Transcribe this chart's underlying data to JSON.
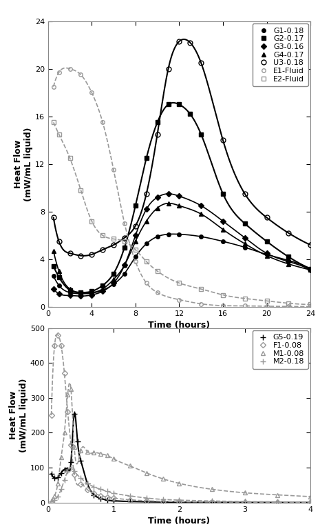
{
  "top": {
    "xlabel": "Time (hours)",
    "ylabel": "Heat Flow\n(mW/mL liquid)",
    "xlim": [
      0,
      24
    ],
    "ylim": [
      0,
      24
    ],
    "xticks": [
      0,
      4,
      8,
      12,
      16,
      20,
      24
    ],
    "yticks": [
      0,
      4,
      8,
      12,
      16,
      20,
      24
    ],
    "series": {
      "G1-0.18": {
        "x": [
          0.5,
          1,
          2,
          3,
          4,
          5,
          6,
          7,
          8,
          9,
          10,
          11,
          12,
          14,
          16,
          18,
          20,
          22,
          24
        ],
        "y": [
          2.6,
          1.8,
          1.2,
          1.1,
          1.15,
          1.4,
          1.9,
          2.8,
          4.2,
          5.3,
          5.9,
          6.1,
          6.1,
          5.9,
          5.5,
          5.0,
          4.4,
          3.9,
          3.2
        ],
        "marker": "o",
        "color": "#000000",
        "linestyle": "-",
        "markersize": 4,
        "fillstyle": "full",
        "lw": 1.2
      },
      "G2-0.17": {
        "x": [
          0.5,
          1,
          2,
          3,
          4,
          5,
          6,
          7,
          8,
          9,
          10,
          11,
          12,
          13,
          14,
          16,
          18,
          20,
          22,
          24
        ],
        "y": [
          3.4,
          2.5,
          1.4,
          1.2,
          1.3,
          1.8,
          2.8,
          5.0,
          8.5,
          12.5,
          15.5,
          17.0,
          17.0,
          16.2,
          14.5,
          9.5,
          7.0,
          5.5,
          4.2,
          3.2
        ],
        "marker": "s",
        "color": "#000000",
        "linestyle": "-",
        "markersize": 4,
        "fillstyle": "full",
        "lw": 1.5
      },
      "G3-0.16": {
        "x": [
          0.5,
          1,
          2,
          3,
          4,
          5,
          6,
          7,
          8,
          9,
          10,
          11,
          12,
          14,
          16,
          18,
          20,
          22,
          24
        ],
        "y": [
          1.5,
          1.1,
          0.95,
          0.9,
          1.0,
          1.3,
          2.0,
          3.5,
          6.0,
          8.2,
          9.2,
          9.5,
          9.3,
          8.5,
          7.2,
          5.8,
          4.5,
          3.8,
          3.1
        ],
        "marker": "D",
        "color": "#000000",
        "linestyle": "-",
        "markersize": 4,
        "fillstyle": "full",
        "lw": 1.2
      },
      "G4-0.17": {
        "x": [
          0.5,
          1,
          2,
          3,
          4,
          5,
          6,
          7,
          8,
          9,
          10,
          11,
          12,
          14,
          16,
          18,
          20,
          22,
          24
        ],
        "y": [
          4.7,
          3.0,
          1.5,
          1.2,
          1.2,
          1.5,
          2.3,
          3.5,
          5.5,
          7.2,
          8.3,
          8.7,
          8.5,
          7.8,
          6.5,
          5.3,
          4.3,
          3.6,
          3.1
        ],
        "marker": "^",
        "color": "#000000",
        "linestyle": "-",
        "markersize": 5,
        "fillstyle": "full",
        "lw": 1.2
      },
      "U3-0.18": {
        "x": [
          0.5,
          1,
          2,
          3,
          4,
          5,
          6,
          7,
          8,
          9,
          10,
          11,
          12,
          13,
          14,
          16,
          18,
          20,
          22,
          24
        ],
        "y": [
          7.5,
          5.5,
          4.5,
          4.3,
          4.4,
          4.8,
          5.2,
          5.8,
          6.8,
          9.5,
          14.5,
          20.0,
          22.3,
          22.2,
          20.5,
          14.0,
          9.5,
          7.5,
          6.2,
          5.2
        ],
        "marker": "o",
        "color": "#000000",
        "linestyle": "-",
        "markersize": 5,
        "fillstyle": "none",
        "lw": 1.5
      },
      "E1-Fluid": {
        "x": [
          0.5,
          1,
          2,
          3,
          4,
          5,
          6,
          7,
          8,
          9,
          10,
          12,
          14,
          16,
          18,
          20,
          22,
          24
        ],
        "y": [
          18.5,
          19.7,
          20.0,
          19.5,
          18.0,
          15.5,
          11.5,
          7.0,
          3.8,
          2.0,
          1.2,
          0.6,
          0.25,
          0.1,
          0.08,
          0.05,
          0.03,
          0.02
        ],
        "marker": "o",
        "color": "#999999",
        "linestyle": "--",
        "markersize": 4,
        "fillstyle": "none",
        "lw": 1.2
      },
      "E2-Fluid": {
        "x": [
          0.5,
          1,
          2,
          3,
          4,
          5,
          6,
          7,
          8,
          9,
          10,
          12,
          14,
          16,
          18,
          20,
          22,
          24
        ],
        "y": [
          15.5,
          14.5,
          12.5,
          9.8,
          7.2,
          6.0,
          5.7,
          5.5,
          4.8,
          3.8,
          3.0,
          2.0,
          1.5,
          1.0,
          0.7,
          0.5,
          0.3,
          0.2
        ],
        "marker": "s",
        "color": "#999999",
        "linestyle": "--",
        "markersize": 4,
        "fillstyle": "none",
        "lw": 1.2
      }
    }
  },
  "bottom": {
    "xlabel": "Time (hours)",
    "ylabel": "Heat Flow\n(mW/mL liquid)",
    "xlim": [
      0,
      4
    ],
    "ylim": [
      0,
      500
    ],
    "xticks": [
      0,
      1,
      2,
      3,
      4
    ],
    "yticks": [
      0,
      100,
      200,
      300,
      400,
      500
    ],
    "series": {
      "G5-0.19": {
        "x": [
          0.05,
          0.1,
          0.15,
          0.2,
          0.25,
          0.3,
          0.35,
          0.4,
          0.45,
          0.5,
          0.6,
          0.7,
          0.8,
          0.9,
          1.0,
          1.25,
          1.5,
          1.75,
          2.0,
          2.5,
          3.0,
          3.5,
          4.0
        ],
        "y": [
          82,
          70,
          72,
          85,
          95,
          95,
          115,
          255,
          175,
          120,
          55,
          22,
          12,
          7,
          5,
          3,
          2,
          1.5,
          1,
          0.6,
          0.4,
          0.2,
          0.1
        ],
        "marker": "+",
        "color": "#000000",
        "linestyle": "-",
        "markersize": 6,
        "fillstyle": "full",
        "lw": 1.5
      },
      "F1-0.08": {
        "x": [
          0.05,
          0.1,
          0.15,
          0.2,
          0.25,
          0.3,
          0.35,
          0.4,
          0.5,
          0.6,
          0.7,
          0.8,
          0.9,
          1.0,
          1.25,
          1.5,
          1.75,
          2.0,
          2.5,
          3.0,
          3.5,
          4.0
        ],
        "y": [
          250,
          450,
          480,
          450,
          370,
          260,
          165,
          80,
          52,
          37,
          27,
          20,
          16,
          13,
          8,
          5,
          3.5,
          2.5,
          1.5,
          1,
          0.6,
          0.3
        ],
        "marker": "D",
        "color": "#999999",
        "linestyle": "--",
        "markersize": 4,
        "fillstyle": "none",
        "lw": 1.2
      },
      "M1-0.08": {
        "x": [
          0.05,
          0.1,
          0.15,
          0.2,
          0.25,
          0.3,
          0.35,
          0.4,
          0.5,
          0.6,
          0.7,
          0.8,
          0.9,
          1.0,
          1.25,
          1.5,
          1.75,
          2.0,
          2.5,
          3.0,
          3.5,
          4.0
        ],
        "y": [
          5,
          20,
          55,
          130,
          200,
          310,
          325,
          160,
          150,
          145,
          143,
          140,
          135,
          125,
          105,
          85,
          68,
          55,
          38,
          28,
          22,
          17
        ],
        "marker": "^",
        "color": "#999999",
        "linestyle": "--",
        "markersize": 5,
        "fillstyle": "none",
        "lw": 1.2
      },
      "M2-0.18": {
        "x": [
          0.05,
          0.1,
          0.15,
          0.2,
          0.25,
          0.3,
          0.35,
          0.4,
          0.5,
          0.6,
          0.7,
          0.8,
          0.9,
          1.0,
          1.25,
          1.5,
          1.75,
          2.0,
          2.5,
          3.0,
          3.5,
          4.0
        ],
        "y": [
          3,
          8,
          18,
          38,
          65,
          90,
          100,
          90,
          70,
          55,
          45,
          38,
          32,
          27,
          19,
          13,
          9,
          7,
          4.5,
          3,
          2,
          1.2
        ],
        "marker": "+",
        "color": "#999999",
        "linestyle": "--",
        "markersize": 6,
        "fillstyle": "full",
        "lw": 1.2
      }
    }
  },
  "figure_bg": "#ffffff",
  "axis_bg": "#ffffff",
  "label_fontsize": 9,
  "tick_fontsize": 8,
  "legend_fontsize": 8
}
